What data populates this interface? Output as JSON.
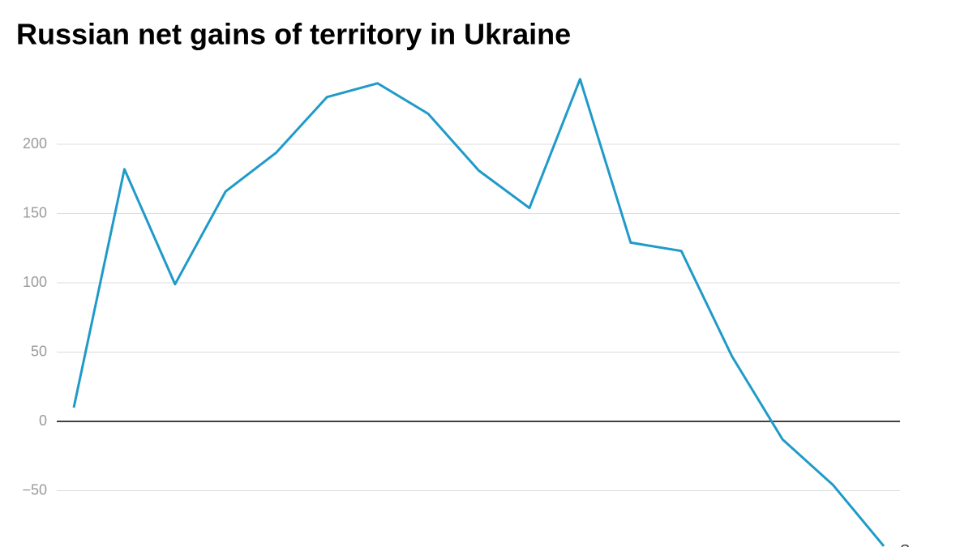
{
  "chart_data": {
    "type": "line",
    "title": "Russian net gains of territory in Ukraine",
    "annotation": "Square",
    "categories": [
      null,
      null,
      null,
      null,
      null,
      null,
      null,
      null,
      null,
      null,
      null,
      null,
      null,
      null,
      null,
      null,
      null
    ],
    "series": [
      {
        "name": "Russian net gains",
        "color": "#1f9ac9",
        "values": [
          10,
          182,
          99,
          166,
          194,
          234,
          244,
          222,
          181,
          154,
          247,
          129,
          123,
          47,
          -13,
          -46,
          -90
        ]
      }
    ],
    "ylim": [
      -90,
      250
    ],
    "yticks": [
      {
        "value": -50,
        "label": "−50"
      },
      0,
      50,
      100,
      150,
      200
    ],
    "grid": true
  }
}
